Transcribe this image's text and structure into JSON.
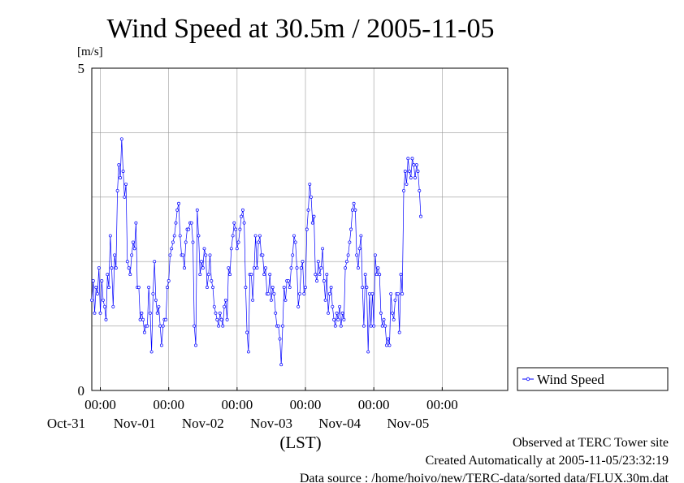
{
  "chart_data": {
    "type": "line",
    "title": "Wind Speed at 30.5m / 2005-11-05",
    "ylabel": "[m/s]",
    "xlabel": "(LST)",
    "ylim": [
      0,
      5
    ],
    "yticks": [
      "0",
      "5"
    ],
    "xlim": [
      "2005-10-30T21:00",
      "2005-11-05T23:00"
    ],
    "xtick_labels": [
      {
        "time": "00:00",
        "date": "Oct-31"
      },
      {
        "time": "00:00",
        "date": "Nov-01"
      },
      {
        "time": "00:00",
        "date": "Nov-02"
      },
      {
        "time": "00:00",
        "date": "Nov-03"
      },
      {
        "time": "00:00",
        "date": "Nov-04"
      },
      {
        "time": "00:00",
        "date": "Nov-05"
      }
    ],
    "grid": true,
    "legend_position": "right",
    "series": [
      {
        "name": "Wind Speed",
        "color": "#0000ff",
        "start": "2005-10-30T21:00",
        "interval_minutes": 30,
        "values": [
          1.4,
          1.7,
          1.2,
          1.6,
          1.5,
          1.9,
          1.2,
          1.7,
          1.4,
          1.3,
          1.1,
          1.8,
          1.6,
          2.4,
          1.9,
          1.3,
          2.1,
          1.9,
          3.1,
          3.5,
          3.3,
          3.9,
          3.4,
          3.0,
          3.2,
          2.0,
          1.9,
          1.8,
          2.1,
          2.3,
          2.2,
          2.6,
          1.6,
          1.6,
          1.1,
          1.2,
          1.1,
          0.9,
          1.0,
          1.0,
          1.6,
          1.2,
          0.6,
          1.5,
          2.0,
          1.4,
          1.2,
          1.3,
          1.0,
          0.7,
          1.0,
          1.1,
          1.1,
          1.6,
          1.7,
          2.1,
          2.2,
          2.3,
          2.4,
          2.6,
          2.8,
          2.9,
          2.4,
          2.1,
          2.1,
          1.9,
          2.3,
          2.5,
          2.5,
          2.6,
          2.6,
          2.3,
          1.0,
          0.7,
          2.8,
          2.4,
          1.8,
          2.0,
          1.9,
          2.2,
          2.1,
          1.6,
          1.8,
          2.1,
          1.7,
          1.6,
          1.3,
          1.2,
          1.1,
          1.0,
          1.2,
          1.1,
          1.0,
          1.3,
          1.4,
          1.1,
          1.9,
          1.8,
          2.2,
          2.4,
          2.6,
          2.5,
          2.2,
          2.3,
          2.5,
          2.7,
          2.8,
          2.6,
          1.6,
          0.9,
          0.6,
          1.8,
          1.8,
          1.4,
          1.9,
          2.4,
          1.9,
          2.3,
          2.4,
          2.1,
          2.1,
          1.8,
          1.9,
          1.5,
          1.5,
          1.8,
          1.4,
          1.6,
          1.5,
          1.2,
          1.0,
          1.0,
          0.8,
          0.4,
          1.0,
          1.6,
          1.4,
          1.7,
          1.7,
          1.6,
          1.9,
          2.1,
          2.4,
          2.3,
          1.9,
          1.3,
          1.5,
          1.9,
          2.0,
          1.5,
          1.6,
          2.5,
          2.8,
          3.2,
          3.0,
          2.6,
          2.7,
          1.8,
          1.7,
          2.0,
          1.8,
          1.9,
          2.2,
          1.7,
          1.4,
          1.8,
          1.2,
          1.5,
          1.6,
          1.3,
          1.1,
          1.0,
          1.2,
          1.1,
          1.3,
          1.0,
          1.2,
          1.1,
          1.9,
          2.0,
          2.1,
          2.3,
          2.5,
          2.8,
          2.9,
          2.8,
          2.1,
          1.9,
          2.2,
          2.4,
          1.6,
          1.0,
          1.8,
          1.6,
          0.6,
          1.5,
          1.0,
          1.5,
          1.0,
          2.1,
          1.8,
          1.9,
          1.8,
          1.2,
          1.0,
          1.1,
          1.0,
          0.7,
          0.8,
          0.7,
          1.5,
          1.2,
          1.1,
          1.4,
          1.5,
          1.5,
          0.9,
          1.8,
          1.5,
          3.1,
          3.4,
          3.2,
          3.6,
          3.4,
          3.3,
          3.6,
          3.5,
          3.3,
          3.5,
          3.4,
          3.1,
          2.7
        ]
      }
    ]
  },
  "footer": {
    "line1": "Observed at TERC Tower site",
    "line2": "Created Automatically at 2005-11-05/23:32:19",
    "line3": "Data source : /home/hoivo/new/TERC-data/sorted  data/FLUX.30m.dat"
  }
}
